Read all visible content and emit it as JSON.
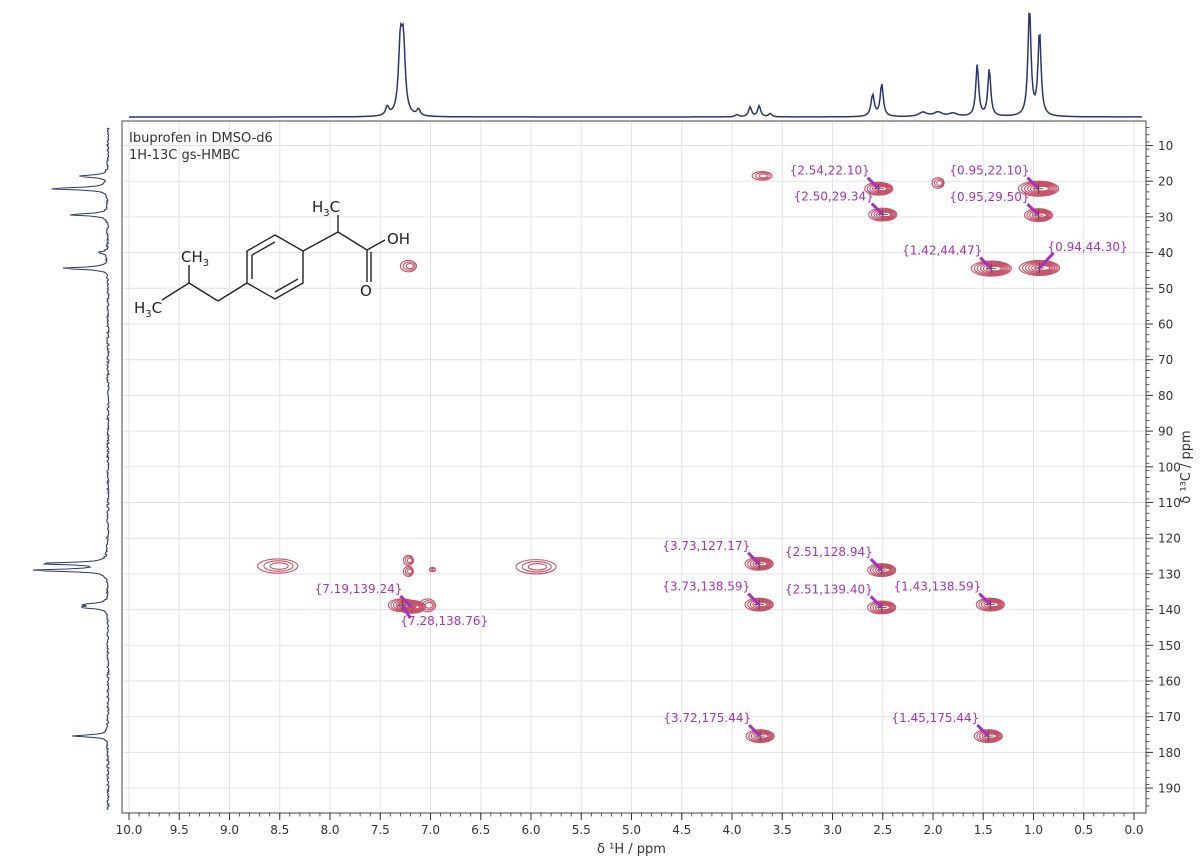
{
  "chart_data": {
    "type": "scatter",
    "subtype": "2D NMR HMBC contour",
    "title": "Ibuprofen in DMSO-d6",
    "subtitle": "1H-13C gs-HMBC",
    "xlabel": "δ ¹H / ppm",
    "ylabel": "δ ¹³C / ppm",
    "xlim": [
      10.0,
      0.0
    ],
    "ylim": [
      5,
      195
    ],
    "x_ticks": [
      "10.0",
      "9.5",
      "9.0",
      "8.5",
      "8.0",
      "7.5",
      "7.0",
      "6.5",
      "6.0",
      "5.5",
      "5.0",
      "4.5",
      "4.0",
      "3.5",
      "3.0",
      "2.5",
      "2.0",
      "1.5",
      "1.0",
      "0.5",
      "0.0"
    ],
    "y_ticks": [
      "10",
      "20",
      "30",
      "40",
      "50",
      "60",
      "70",
      "80",
      "90",
      "100",
      "110",
      "120",
      "130",
      "140",
      "150",
      "160",
      "170",
      "180",
      "190"
    ],
    "grid": true,
    "contour_color": "#c45268",
    "label_color": "#a533b8",
    "axis_color": "#2a3570",
    "labeled_peaks": [
      {
        "x": 2.54,
        "y": 22.1,
        "label": "{2.54,22.10}",
        "side": "left"
      },
      {
        "x": 2.5,
        "y": 29.34,
        "label": "{2.50,29.34}",
        "side": "left"
      },
      {
        "x": 0.95,
        "y": 22.1,
        "label": "{0.95,22.10}",
        "side": "left"
      },
      {
        "x": 0.95,
        "y": 29.5,
        "label": "{0.95,29.50}",
        "side": "left"
      },
      {
        "x": 1.42,
        "y": 44.47,
        "label": "{1.42,44.47}",
        "side": "left"
      },
      {
        "x": 0.94,
        "y": 44.3,
        "label": "{0.94,44.30}",
        "side": "right"
      },
      {
        "x": 3.73,
        "y": 127.17,
        "label": "{3.73,127.17}",
        "side": "left"
      },
      {
        "x": 2.51,
        "y": 128.94,
        "label": "{2.51,128.94}",
        "side": "left"
      },
      {
        "x": 3.73,
        "y": 138.59,
        "label": "{3.73,138.59}",
        "side": "left"
      },
      {
        "x": 2.51,
        "y": 139.4,
        "label": "{2.51,139.40}",
        "side": "left"
      },
      {
        "x": 1.43,
        "y": 138.59,
        "label": "{1.43,138.59}",
        "side": "left"
      },
      {
        "x": 7.19,
        "y": 139.24,
        "label": "{7.19,139.24}",
        "side": "left"
      },
      {
        "x": 7.28,
        "y": 138.76,
        "label": "{7.28,138.76}",
        "side": "below"
      },
      {
        "x": 3.72,
        "y": 175.44,
        "label": "{3.72,175.44}",
        "side": "left"
      },
      {
        "x": 1.45,
        "y": 175.44,
        "label": "{1.45,175.44}",
        "side": "left"
      }
    ],
    "unlabeled_peaks": [
      {
        "x": 3.7,
        "y": 18.5,
        "rx": 0.1,
        "ry": 1.2
      },
      {
        "x": 1.95,
        "y": 20.5,
        "rx": 0.06,
        "ry": 1.5
      },
      {
        "x": 7.22,
        "y": 43.8,
        "rx": 0.08,
        "ry": 1.6
      },
      {
        "x": 8.52,
        "y": 127.8,
        "rx": 0.2,
        "ry": 2.0
      },
      {
        "x": 5.95,
        "y": 128.0,
        "rx": 0.2,
        "ry": 2.0
      },
      {
        "x": 7.22,
        "y": 126.2,
        "rx": 0.05,
        "ry": 1.4
      },
      {
        "x": 7.22,
        "y": 129.3,
        "rx": 0.05,
        "ry": 1.4
      },
      {
        "x": 7.03,
        "y": 138.8,
        "rx": 0.08,
        "ry": 1.8
      },
      {
        "x": 6.98,
        "y": 128.8,
        "rx": 0.03,
        "ry": 0.6
      }
    ],
    "h1_projection_peaks": [
      {
        "x": 7.43,
        "h": 0.08,
        "w": 0.02
      },
      {
        "x": 7.3,
        "h": 0.62,
        "w": 0.022
      },
      {
        "x": 7.27,
        "h": 0.62,
        "w": 0.022
      },
      {
        "x": 7.12,
        "h": 0.06,
        "w": 0.02
      },
      {
        "x": 3.82,
        "h": 0.09,
        "w": 0.018
      },
      {
        "x": 3.73,
        "h": 0.1,
        "w": 0.018
      },
      {
        "x": 3.62,
        "h": 0.03,
        "w": 0.018
      },
      {
        "x": 3.95,
        "h": 0.02,
        "w": 0.02
      },
      {
        "x": 2.6,
        "h": 0.2,
        "w": 0.02
      },
      {
        "x": 2.51,
        "h": 0.3,
        "w": 0.018
      },
      {
        "x": 2.1,
        "h": 0.04,
        "w": 0.05
      },
      {
        "x": 1.95,
        "h": 0.04,
        "w": 0.05
      },
      {
        "x": 1.8,
        "h": 0.03,
        "w": 0.05
      },
      {
        "x": 1.56,
        "h": 0.48,
        "w": 0.017
      },
      {
        "x": 1.44,
        "h": 0.44,
        "w": 0.017
      },
      {
        "x": 1.04,
        "h": 1.0,
        "w": 0.018
      },
      {
        "x": 0.94,
        "h": 0.78,
        "w": 0.018
      }
    ],
    "c13_projection_peaks": [
      {
        "y": 18.6,
        "h": 0.35
      },
      {
        "y": 22.1,
        "h": 0.7
      },
      {
        "y": 29.4,
        "h": 0.45
      },
      {
        "y": 40.0,
        "h": 0.12
      },
      {
        "y": 44.4,
        "h": 0.55
      },
      {
        "y": 127.1,
        "h": 0.82
      },
      {
        "y": 129.0,
        "h": 0.92
      },
      {
        "y": 138.6,
        "h": 0.28
      },
      {
        "y": 139.4,
        "h": 0.3
      },
      {
        "y": 175.4,
        "h": 0.42
      }
    ]
  }
}
